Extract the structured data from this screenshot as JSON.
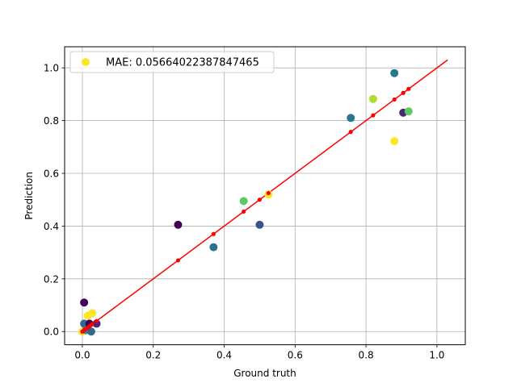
{
  "chart_data": {
    "type": "scatter",
    "title": "",
    "xlabel": "Ground truth",
    "ylabel": "Prediction",
    "xlim": [
      -0.05,
      1.08
    ],
    "ylim": [
      -0.05,
      1.08
    ],
    "grid": true,
    "xticks": [
      0.0,
      0.2,
      0.4,
      0.6,
      0.8,
      1.0
    ],
    "yticks": [
      0.0,
      0.2,
      0.4,
      0.6,
      0.8,
      1.0
    ],
    "xtick_labels": [
      "0.0",
      "0.2",
      "0.4",
      "0.6",
      "0.8",
      "1.0"
    ],
    "ytick_labels": [
      "0.0",
      "0.2",
      "0.4",
      "0.6",
      "0.8",
      "1.0"
    ],
    "legend": {
      "location": "top-left",
      "entries": [
        {
          "label": "MAE: 0.05664022387847465",
          "color": "#fde725"
        }
      ]
    },
    "points": [
      {
        "x": 0.0,
        "y": 0.0,
        "color": "#fde725"
      },
      {
        "x": 0.005,
        "y": 0.11,
        "color": "#440154"
      },
      {
        "x": 0.005,
        "y": 0.03,
        "color": "#31688e"
      },
      {
        "x": 0.01,
        "y": 0.005,
        "color": "#21918c"
      },
      {
        "x": 0.015,
        "y": 0.06,
        "color": "#fde725"
      },
      {
        "x": 0.02,
        "y": 0.03,
        "color": "#440154"
      },
      {
        "x": 0.025,
        "y": 0.0,
        "color": "#31688e"
      },
      {
        "x": 0.028,
        "y": 0.07,
        "color": "#fde725"
      },
      {
        "x": 0.04,
        "y": 0.03,
        "color": "#482878"
      },
      {
        "x": 0.27,
        "y": 0.405,
        "color": "#440154"
      },
      {
        "x": 0.37,
        "y": 0.32,
        "color": "#2c728e"
      },
      {
        "x": 0.455,
        "y": 0.495,
        "color": "#5ec962"
      },
      {
        "x": 0.5,
        "y": 0.405,
        "color": "#3b528b"
      },
      {
        "x": 0.525,
        "y": 0.52,
        "color": "#fde725"
      },
      {
        "x": 0.757,
        "y": 0.81,
        "color": "#2a788e"
      },
      {
        "x": 0.82,
        "y": 0.882,
        "color": "#addc30"
      },
      {
        "x": 0.88,
        "y": 0.98,
        "color": "#2a788e"
      },
      {
        "x": 0.88,
        "y": 0.722,
        "color": "#fde725"
      },
      {
        "x": 0.905,
        "y": 0.83,
        "color": "#482878"
      },
      {
        "x": 0.92,
        "y": 0.835,
        "color": "#5ec962"
      }
    ],
    "fit_line": {
      "color": "#ff0000",
      "x": [
        0.0,
        1.03
      ],
      "y": [
        0.0,
        1.03
      ]
    },
    "fit_markers": {
      "color": "#ff0000",
      "x": [
        0.0,
        0.005,
        0.01,
        0.015,
        0.02,
        0.025,
        0.028,
        0.04,
        0.27,
        0.37,
        0.455,
        0.5,
        0.525,
        0.757,
        0.82,
        0.88,
        0.905,
        0.92
      ]
    }
  }
}
